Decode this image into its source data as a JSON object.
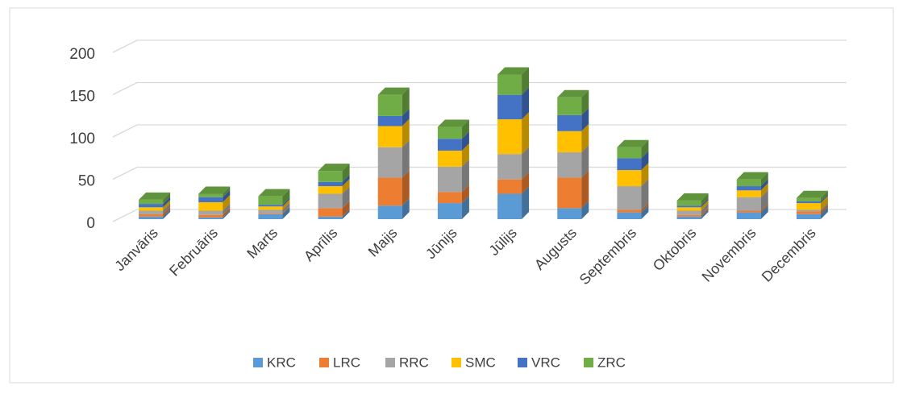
{
  "chart_data": {
    "type": "bar3d_stacked",
    "categories": [
      "Janvāris",
      "Februāris",
      "Marts",
      "Aprīlis",
      "Maijs",
      "Jūnijs",
      "Jūlijs",
      "Augusts",
      "Septembris",
      "Oktobris",
      "Novembris",
      "Decembris"
    ],
    "series": [
      {
        "name": "KRC",
        "color": "#5b9bd5",
        "values": [
          3,
          2,
          6,
          3,
          16,
          19,
          30,
          13,
          8,
          3,
          8,
          6
        ]
      },
      {
        "name": "LRC",
        "color": "#ed7d31",
        "values": [
          3,
          3,
          1,
          10,
          33,
          13,
          17,
          36,
          3,
          2,
          2,
          3
        ]
      },
      {
        "name": "RRC",
        "color": "#a5a5a5",
        "values": [
          4,
          5,
          4,
          17,
          36,
          30,
          30,
          30,
          28,
          5,
          16,
          2
        ]
      },
      {
        "name": "SMC",
        "color": "#ffc000",
        "values": [
          4,
          10,
          4,
          9,
          25,
          19,
          41,
          25,
          19,
          4,
          8,
          8
        ]
      },
      {
        "name": "VRC",
        "color": "#4472c4",
        "values": [
          4,
          6,
          2,
          5,
          12,
          14,
          29,
          19,
          14,
          2,
          5,
          2
        ]
      },
      {
        "name": "ZRC",
        "color": "#70ad47",
        "values": [
          5,
          4,
          10,
          13,
          25,
          14,
          24,
          21,
          13,
          6,
          8,
          4
        ]
      }
    ],
    "ylim": [
      0,
      200
    ],
    "yticks": [
      0,
      50,
      100,
      150,
      200
    ],
    "grid": true,
    "legend": "bottom"
  }
}
